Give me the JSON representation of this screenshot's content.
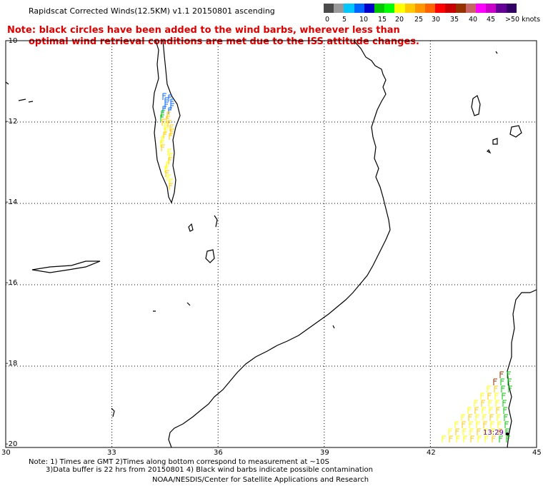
{
  "title": "Rapidscat Corrected Winds(12.5KM) v1.1 20150801 ascending",
  "note_lines": [
    "Note: black circles have been added to the wind barbs, wherever less than",
    "optimal wind retrieval conditions are met due to the ISS attitude changes."
  ],
  "color_scale": {
    "labels": [
      "0",
      "5",
      "10",
      "15",
      "20",
      "25",
      "30",
      "35",
      "40",
      "45",
      ">50 knots"
    ],
    "colors": [
      "#4a4a4a",
      "#9a9a9a",
      "#00c8ff",
      "#0064ff",
      "#0000c8",
      "#00c800",
      "#00ff00",
      "#ffff00",
      "#ffc800",
      "#ff9600",
      "#ff6400",
      "#ff0000",
      "#c80000",
      "#963200",
      "#c86464",
      "#ff00ff",
      "#c800c8",
      "#640096",
      "#320064"
    ]
  },
  "map": {
    "lon_range": [
      30,
      45
    ],
    "lat_range": [
      -20,
      -10
    ],
    "lat_labels": [
      "-10",
      "-12",
      "-14",
      "-16",
      "-18",
      "-20"
    ],
    "lon_labels": [
      "30",
      "33",
      "36",
      "39",
      "42",
      "45"
    ],
    "grid_lons": [
      33,
      36,
      39,
      42
    ],
    "grid_lats": [
      -12,
      -14,
      -16,
      -18
    ],
    "pass_time": "13:29",
    "wind_barb_colors": [
      "#ffff00",
      "#ffc800",
      "#00c800",
      "#0064ff",
      "#963200"
    ]
  },
  "footer": {
    "line1": "Note: 1) Times are GMT 2)Times along bottom correspond to measurement at ~10S",
    "line2": "3)Data buffer is 22 hrs from 20150801 4) Black wind barbs indicate possible contamination",
    "line3": "NOAA/NESDIS/Center for Satellite Applications and Research"
  }
}
